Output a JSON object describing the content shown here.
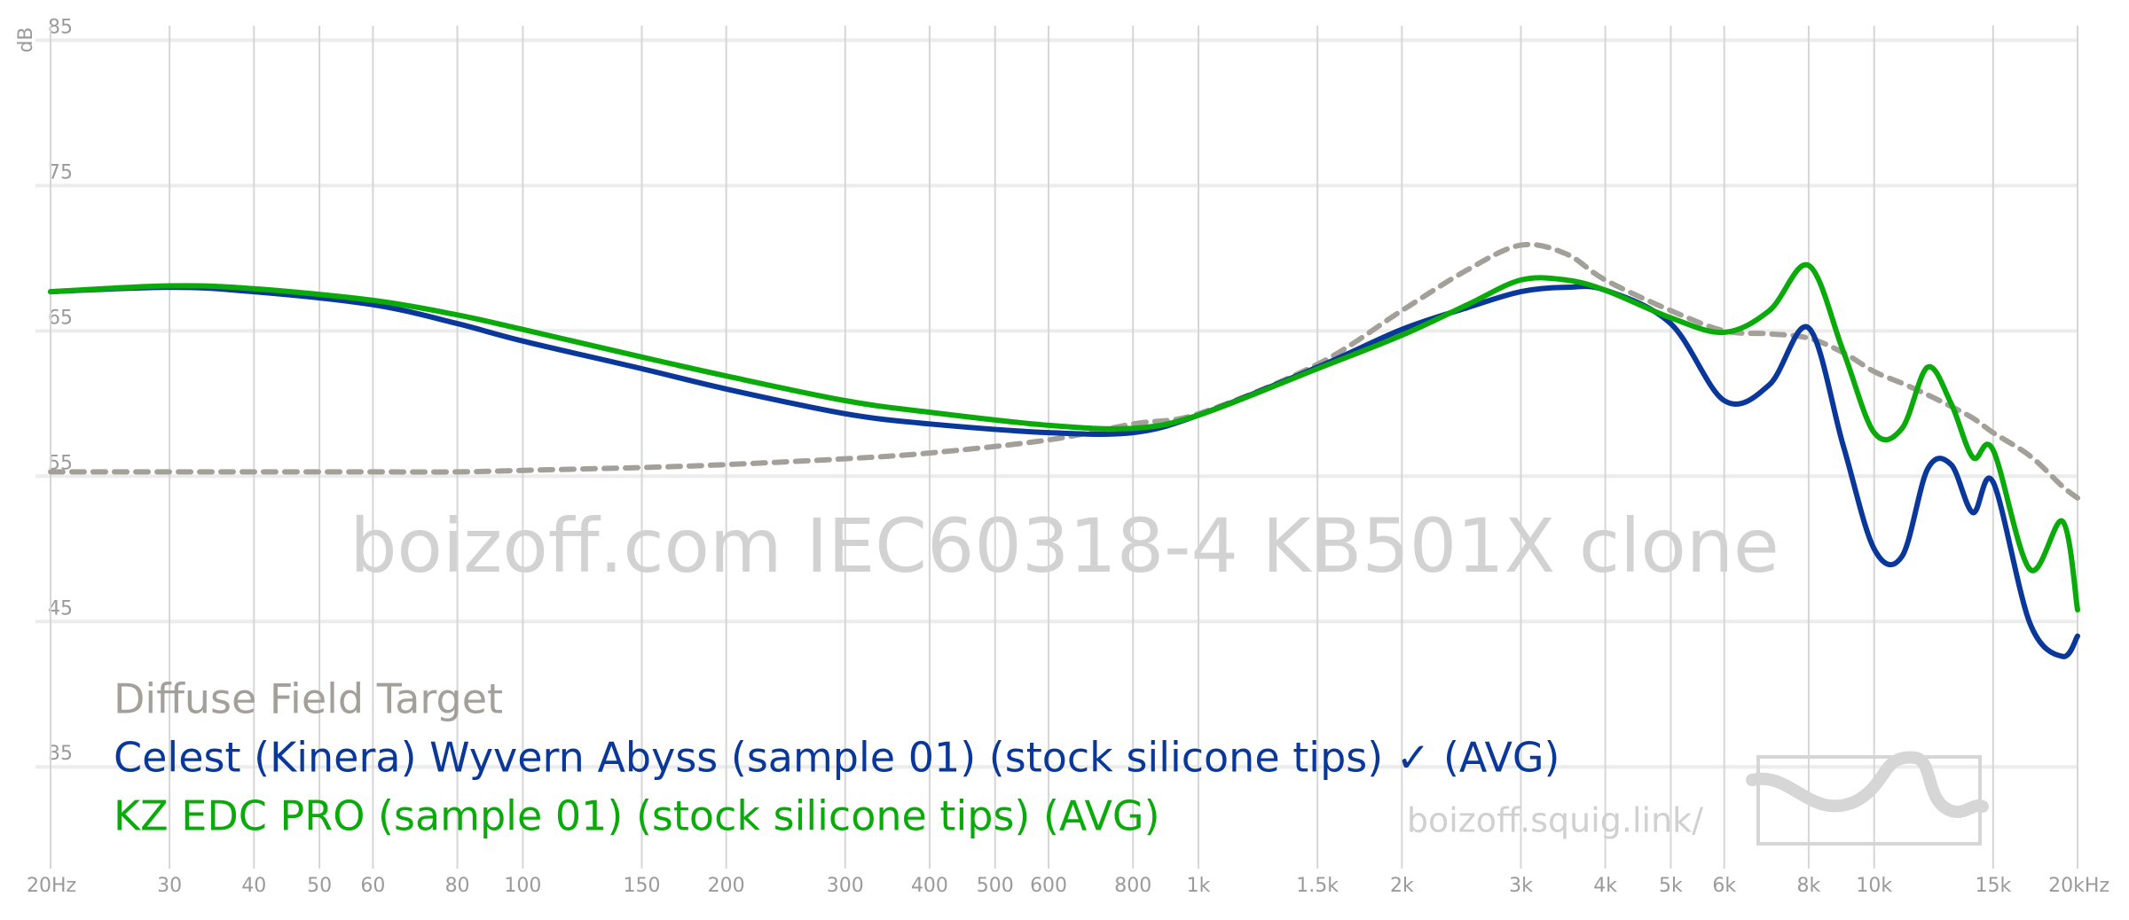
{
  "chart_data": {
    "type": "line",
    "y_label": "dB",
    "watermark": "boizoff.com IEC60318-4 KB501X clone",
    "site": "boizoff.squig.link/",
    "x_log": true,
    "xlim": [
      20,
      20000
    ],
    "ylim": [
      28,
      86
    ],
    "yticks": [
      35,
      45,
      55,
      65,
      75,
      85
    ],
    "xticks": [
      {
        "value": 20,
        "label": "20Hz"
      },
      30,
      40,
      50,
      60,
      80,
      100,
      150,
      200,
      300,
      400,
      500,
      600,
      800,
      {
        "value": 1000,
        "label": "1k"
      },
      {
        "value": 1500,
        "label": "1.5k"
      },
      {
        "value": 2000,
        "label": "2k"
      },
      {
        "value": 3000,
        "label": "3k"
      },
      {
        "value": 4000,
        "label": "4k"
      },
      {
        "value": 5000,
        "label": "5k"
      },
      {
        "value": 6000,
        "label": "6k"
      },
      {
        "value": 8000,
        "label": "8k"
      },
      {
        "value": 10000,
        "label": "10k"
      },
      {
        "value": 15000,
        "label": "15k"
      },
      {
        "value": 20000,
        "label": "20kHz"
      }
    ],
    "grid": true,
    "x": [
      20,
      30,
      40,
      60,
      80,
      100,
      150,
      200,
      300,
      400,
      600,
      800,
      1000,
      1500,
      2000,
      2500,
      3000,
      3500,
      4000,
      5000,
      6000,
      7000,
      8000,
      9000,
      10000,
      11000,
      12000,
      13000,
      14000,
      15000,
      17000,
      19000,
      20000
    ],
    "series": [
      {
        "name": "Diffuse Field Target",
        "color": "#a39f99",
        "dashed": true,
        "values": [
          55.3,
          55.3,
          55.3,
          55.3,
          55.3,
          55.4,
          55.6,
          55.8,
          56.2,
          56.6,
          57.5,
          58.6,
          59.3,
          62.7,
          66.4,
          69.2,
          70.9,
          70.3,
          68.5,
          66.4,
          65.0,
          64.8,
          64.5,
          63.5,
          62.2,
          61.4,
          60.6,
          59.8,
          59.0,
          58.0,
          56.4,
          54.3,
          53.5
        ]
      },
      {
        "name": "Celest (Kinera) Wyvern Abyss (sample 01) (stock silicone tips) ✓ (AVG)",
        "color": "#0a389a",
        "values": [
          67.7,
          68.0,
          67.7,
          66.8,
          65.5,
          64.3,
          62.4,
          61.0,
          59.3,
          58.6,
          58.0,
          58.0,
          59.2,
          62.5,
          65.1,
          66.6,
          67.7,
          68.0,
          67.8,
          65.5,
          60.2,
          61.3,
          65.2,
          57.1,
          50.0,
          49.5,
          55.5,
          55.8,
          52.5,
          54.6,
          44.9,
          42.6,
          44.0
        ]
      },
      {
        "name": "KZ EDC PRO (sample 01) (stock silicone tips) (AVG)",
        "color": "#0aaa0a",
        "values": [
          67.7,
          68.1,
          67.9,
          67.1,
          66.1,
          65.1,
          63.2,
          61.9,
          60.2,
          59.4,
          58.5,
          58.3,
          59.2,
          62.4,
          64.7,
          66.8,
          68.5,
          68.5,
          67.8,
          65.9,
          64.9,
          66.4,
          69.5,
          63.6,
          58.0,
          58.3,
          62.5,
          60.0,
          56.3,
          56.8,
          48.6,
          51.9,
          45.8
        ]
      }
    ]
  }
}
